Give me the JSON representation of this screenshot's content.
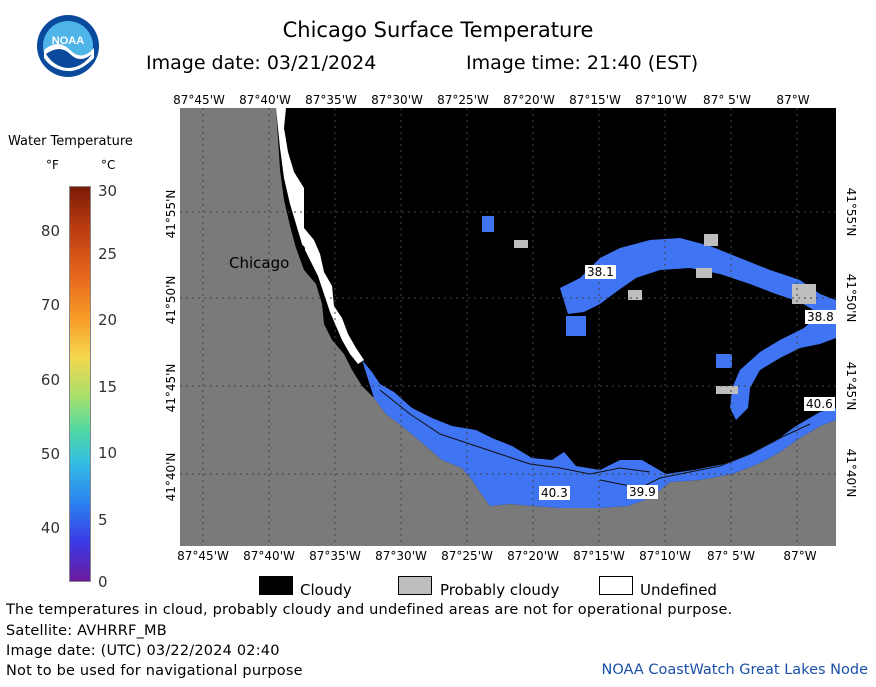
{
  "header": {
    "title": "Chicago Surface Temperature",
    "image_date": "Image date: 03/21/2024",
    "image_time": "Image time: 21:40 (EST)"
  },
  "logo": {
    "text": "NOAA",
    "icon": "noaa-logo-icon",
    "colors": {
      "outer": "#0a4a9c",
      "inner": "#4fb4e8",
      "wave": "#ffffff"
    }
  },
  "colorbar": {
    "label": "Water Temperature",
    "unit_f": "°F",
    "unit_c": "°C",
    "f_ticks": [
      "80",
      "70",
      "60",
      "50",
      "40"
    ],
    "c_ticks": [
      "30",
      "25",
      "20",
      "15",
      "10",
      "5",
      "0"
    ]
  },
  "map": {
    "lon_labels": [
      "87°45'W",
      "87°40'W",
      "87°35'W",
      "87°30'W",
      "87°25'W",
      "87°20'W",
      "87°15'W",
      "87°10'W",
      "87° 5'W",
      "87°W"
    ],
    "lat_labels": [
      "41°55'N",
      "41°50'N",
      "41°45'N",
      "41°40'N"
    ],
    "city_label": "Chicago",
    "temp_labels": [
      "38.1",
      "38.8",
      "40.6",
      "40.3",
      "39.9"
    ],
    "colors": {
      "land": "#7a7a7a",
      "cloud": "#000000",
      "water": "#3f74f2",
      "probably_cloudy": "#bebebe",
      "undefined": "#ffffff"
    }
  },
  "legend": {
    "items": [
      {
        "label": "Cloudy",
        "color": "#000000"
      },
      {
        "label": "Probably cloudy",
        "color": "#bebebe"
      },
      {
        "label": "Undefined",
        "color": "#ffffff"
      }
    ]
  },
  "footer": {
    "note": "The temperatures in cloud, probably cloudy and undefined areas are not for operational purpose.",
    "satellite": "Satellite: AVHRRF_MB",
    "utc_date": "Image date: (UTC) 03/22/2024  02:40",
    "nav_warning": "Not to be used for navigational purpose",
    "credit": "NOAA CoastWatch Great Lakes Node"
  }
}
